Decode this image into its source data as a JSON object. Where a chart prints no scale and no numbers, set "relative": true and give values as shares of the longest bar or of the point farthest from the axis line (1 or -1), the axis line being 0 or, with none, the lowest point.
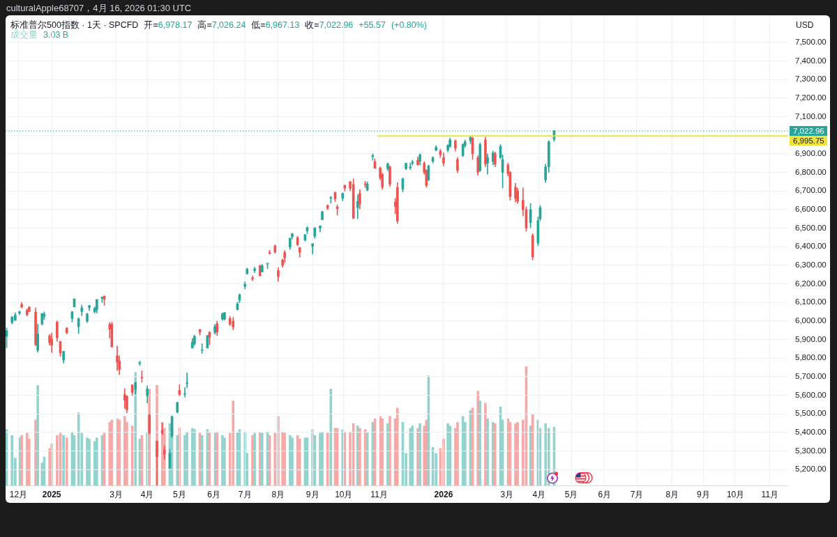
{
  "chart_data": [
    {
      "type": "candlestick",
      "title": "标准普尔500指数 · 1天 · SPCFD",
      "subtitle": "开=6,978.17 高=7,026.24 低=6,967.13 收=7,022.96 +55.57 (+0.80%)",
      "ylabel": "USD",
      "annotations": [
        "culturalApple68707，4月 16, 2026 01:30 UTC"
      ],
      "x": [
        "2024-11-21",
        "2024-11-26",
        "2024-11-29",
        "2024-12-03",
        "2024-12-05",
        "2024-12-10",
        "2024-12-12",
        "2024-12-18",
        "2024-12-20",
        "2024-12-24",
        "2024-12-26",
        "2024-12-31",
        "2025-01-02",
        "2025-01-07",
        "2025-01-10",
        "2025-01-13",
        "2025-01-16",
        "2025-01-21",
        "2025-01-23",
        "2025-01-27",
        "2025-01-30",
        "2025-02-04",
        "2025-02-06",
        "2025-02-11",
        "2025-02-13",
        "2025-02-18",
        "2025-02-20",
        "2025-02-25",
        "2025-02-27",
        "2025-03-04",
        "2025-03-06",
        "2025-03-11",
        "2025-03-13",
        "2025-03-18",
        "2025-03-21",
        "2025-03-25",
        "2025-03-27",
        "2025-04-01",
        "2025-04-03",
        "2025-04-10",
        "2025-04-15",
        "2025-04-17",
        "2025-04-22",
        "2025-04-24",
        "2025-04-29",
        "2025-05-01",
        "2025-05-06",
        "2025-05-08",
        "2025-05-13",
        "2025-05-15",
        "2025-05-20",
        "2025-05-22",
        "2025-05-27",
        "2025-05-29",
        "2025-06-03",
        "2025-06-05",
        "2025-06-10",
        "2025-06-12",
        "2025-06-17",
        "2025-06-20",
        "2025-06-24",
        "2025-06-26",
        "2025-07-01",
        "2025-07-03",
        "2025-07-08",
        "2025-07-10",
        "2025-07-15",
        "2025-07-17",
        "2025-07-22",
        "2025-07-24",
        "2025-07-29",
        "2025-08-01",
        "2025-08-05",
        "2025-08-07",
        "2025-08-12",
        "2025-08-14",
        "2025-08-19",
        "2025-08-21",
        "2025-08-26",
        "2025-08-28",
        "2025-09-02",
        "2025-09-04",
        "2025-09-09",
        "2025-09-11",
        "2025-09-16",
        "2025-09-19",
        "2025-09-23",
        "2025-09-25",
        "2025-09-30",
        "2025-10-02",
        "2025-10-07",
        "2025-10-10",
        "2025-10-14",
        "2025-10-16",
        "2025-10-21",
        "2025-10-23",
        "2025-10-28",
        "2025-10-30",
        "2025-11-04",
        "2025-11-06",
        "2025-11-11",
        "2025-11-13",
        "2025-11-18",
        "2025-11-20",
        "2025-11-25",
        "2025-11-28",
        "2025-12-02",
        "2025-12-04",
        "2025-12-09",
        "2025-12-11",
        "2025-12-15",
        "2025-12-17",
        "2025-12-19",
        "2025-12-23",
        "2025-12-26",
        "2025-12-30",
        "2026-01-02",
        "2026-01-06",
        "2026-01-08",
        "2026-01-13",
        "2026-01-15",
        "2026-01-20",
        "2026-01-22",
        "2026-01-27",
        "2026-01-29",
        "2026-02-03",
        "2026-02-05",
        "2026-02-10",
        "2026-02-12",
        "2026-02-17",
        "2026-02-19",
        "2026-02-24",
        "2026-02-26",
        "2026-03-03",
        "2026-03-05",
        "2026-03-10",
        "2026-03-12",
        "2026-03-17",
        "2026-03-20",
        "2026-03-24",
        "2026-03-26",
        "2026-03-31",
        "2026-04-02",
        "2026-04-07",
        "2026-04-10",
        "2026-04-15"
      ],
      "xlim": [
        "2024-11-20",
        "2026-11-19"
      ],
      "xticks": [
        {
          "value": "2024-12-02",
          "label": "12月"
        },
        {
          "value": "2025-01-02",
          "label": "2025"
        },
        {
          "value": "2025-03-03",
          "label": "3月"
        },
        {
          "value": "2025-04-01",
          "label": "4月"
        },
        {
          "value": "2025-05-01",
          "label": "5月"
        },
        {
          "value": "2025-06-02",
          "label": "6月"
        },
        {
          "value": "2025-07-01",
          "label": "7月"
        },
        {
          "value": "2025-08-01",
          "label": "8月"
        },
        {
          "value": "2025-09-02",
          "label": "9月"
        },
        {
          "value": "2025-10-01",
          "label": "10月"
        },
        {
          "value": "2025-11-03",
          "label": "11月"
        },
        {
          "value": "2026-01-02",
          "label": "2026"
        },
        {
          "value": "2026-03-02",
          "label": "3月"
        },
        {
          "value": "2026-04-01",
          "label": "4月"
        },
        {
          "value": "2026-05-01",
          "label": "5月"
        },
        {
          "value": "2026-06-01",
          "label": "6月"
        },
        {
          "value": "2026-07-01",
          "label": "7月"
        },
        {
          "value": "2026-08-03",
          "label": "8月"
        },
        {
          "value": "2026-09-01",
          "label": "9月"
        },
        {
          "value": "2026-10-01",
          "label": "10月"
        },
        {
          "value": "2026-11-02",
          "label": "11月"
        }
      ],
      "ylim": [
        5114,
        7646
      ],
      "yticks": [
        {
          "value": 5200,
          "label": "5,200.00"
        },
        {
          "value": 5300,
          "label": "5,300.00"
        },
        {
          "value": 5400,
          "label": "5,400.00"
        },
        {
          "value": 5500,
          "label": "5,500.00"
        },
        {
          "value": 5600,
          "label": "5,600.00"
        },
        {
          "value": 5700,
          "label": "5,700.00"
        },
        {
          "value": 5800,
          "label": "5,800.00"
        },
        {
          "value": 5900,
          "label": "5,900.00"
        },
        {
          "value": 6000,
          "label": "6,000.00"
        },
        {
          "value": 6100,
          "label": "6,100.00"
        },
        {
          "value": 6200,
          "label": "6,200.00"
        },
        {
          "value": 6300,
          "label": "6,300.00"
        },
        {
          "value": 6400,
          "label": "6,400.00"
        },
        {
          "value": 6500,
          "label": "6,500.00"
        },
        {
          "value": 6600,
          "label": "6,600.00"
        },
        {
          "value": 6700,
          "label": "6,700.00"
        },
        {
          "value": 6800,
          "label": "6,800.00"
        },
        {
          "value": 6900,
          "label": "6,900.00"
        },
        {
          "value": 7000,
          "label": null
        },
        {
          "value": 7100,
          "label": "7,100.00"
        },
        {
          "value": 7200,
          "label": "7,200.00"
        },
        {
          "value": 7300,
          "label": "7,300.00"
        },
        {
          "value": 7400,
          "label": "7,400.00"
        },
        {
          "value": 7500,
          "label": "7,500.00"
        }
      ],
      "grid": true,
      "ref_lines": [
        {
          "axis": "y",
          "value": 7022.96,
          "label": "7,022.96",
          "color": "#26a69a",
          "line_style": "dotted"
        }
      ],
      "series": [
        {
          "type": "candlestick",
          "ohlc": [
            [
              5917,
              5962,
              5856,
              5948
            ],
            [
              5992,
              6025,
              5983,
              6021
            ],
            [
              6003,
              6044,
              6003,
              6032
            ],
            [
              6042,
              6053,
              6033,
              6049
            ],
            [
              6089,
              6099,
              6070,
              6075
            ],
            [
              6057,
              6065,
              6026,
              6034
            ],
            [
              6074,
              6079,
              6051,
              6051
            ],
            [
              6048,
              6071,
              5867,
              5872
            ],
            [
              5842,
              5982,
              5832,
              5930
            ],
            [
              5984,
              6040,
              5978,
              6040
            ],
            [
              6024,
              6049,
              6007,
              6037
            ],
            [
              5920,
              5929,
              5869,
              5882
            ],
            [
              5903,
              5935,
              5830,
              5869
            ],
            [
              5994,
              6000,
              5890,
              5909
            ],
            [
              5890,
              5890,
              5809,
              5827
            ],
            [
              5789,
              5838,
              5773,
              5836
            ],
            [
              5961,
              5965,
              5930,
              5937
            ],
            [
              6014,
              6052,
              5994,
              6049
            ],
            [
              6076,
              6119,
              6075,
              6119
            ],
            [
              5969,
              6018,
              5932,
              6012
            ],
            [
              6051,
              6086,
              6028,
              6071
            ],
            [
              5998,
              6042,
              5991,
              6037
            ],
            [
              6072,
              6084,
              6056,
              6083
            ],
            [
              6049,
              6076,
              6042,
              6068
            ],
            [
              6060,
              6116,
              6043,
              6115
            ],
            [
              6121,
              6129,
              6100,
              6129
            ],
            [
              6134,
              6134,
              6084,
              6117
            ],
            [
              5982,
              5992,
              5908,
              5955
            ],
            [
              5983,
              5994,
              5858,
              5861
            ],
            [
              5812,
              5865,
              5733,
              5778
            ],
            [
              5785,
              5812,
              5711,
              5739
            ],
            [
              5604,
              5636,
              5529,
              5573
            ],
            [
              5594,
              5598,
              5505,
              5522
            ],
            [
              5655,
              5658,
              5598,
              5615
            ],
            [
              5630,
              5670,
              5603,
              5668
            ],
            [
              5771,
              5783,
              5760,
              5776
            ],
            [
              5696,
              5732,
              5670,
              5693
            ],
            [
              5597,
              5651,
              5558,
              5633
            ],
            [
              5492,
              5500,
              5390,
              5397
            ],
            [
              5353,
              5353,
              5115,
              5268
            ],
            [
              5411,
              5450,
              5387,
              5396
            ],
            [
              5305,
              5328,
              5255,
              5283
            ],
            [
              5207,
              5309,
              5207,
              5288
            ],
            [
              5381,
              5489,
              5371,
              5485
            ],
            [
              5508,
              5563,
              5505,
              5561
            ],
            [
              5626,
              5658,
              5597,
              5604
            ],
            [
              5605,
              5641,
              5590,
              5607
            ],
            [
              5663,
              5720,
              5639,
              5664
            ],
            [
              5854,
              5906,
              5854,
              5886
            ],
            [
              5878,
              5924,
              5867,
              5917
            ],
            [
              5954,
              5954,
              5924,
              5940
            ],
            [
              5841,
              5878,
              5825,
              5842
            ],
            [
              5854,
              5922,
              5854,
              5922
            ],
            [
              5939,
              5944,
              5872,
              5912
            ],
            [
              5938,
              5981,
              5927,
              5970
            ],
            [
              5985,
              5999,
              5921,
              5939
            ],
            [
              6010,
              6043,
              6003,
              6038
            ],
            [
              6010,
              6046,
              6004,
              6045
            ],
            [
              6013,
              6024,
              5975,
              5983
            ],
            [
              5999,
              6019,
              5953,
              5967
            ],
            [
              6061,
              6101,
              6059,
              6092
            ],
            [
              6112,
              6146,
              6098,
              6141
            ],
            [
              6187,
              6211,
              6172,
              6198
            ],
            [
              6253,
              6285,
              6253,
              6279
            ],
            [
              6232,
              6242,
              6217,
              6226
            ],
            [
              6271,
              6290,
              6260,
              6280
            ],
            [
              6296,
              6302,
              6241,
              6244
            ],
            [
              6265,
              6305,
              6263,
              6297
            ],
            [
              6307,
              6310,
              6281,
              6309
            ],
            [
              6368,
              6381,
              6360,
              6363
            ],
            [
              6404,
              6410,
              6364,
              6371
            ],
            [
              6272,
              6287,
              6212,
              6238
            ],
            [
              6328,
              6334,
              6288,
              6299
            ],
            [
              6369,
              6380,
              6315,
              6340
            ],
            [
              6398,
              6446,
              6385,
              6446
            ],
            [
              6453,
              6473,
              6441,
              6469
            ],
            [
              6449,
              6456,
              6404,
              6411
            ],
            [
              6395,
              6396,
              6343,
              6370
            ],
            [
              6435,
              6466,
              6430,
              6465
            ],
            [
              6485,
              6508,
              6469,
              6502
            ],
            [
              6401,
              6416,
              6360,
              6416
            ],
            [
              6456,
              6502,
              6445,
              6502
            ],
            [
              6500,
              6513,
              6480,
              6512
            ],
            [
              6545,
              6592,
              6545,
              6588
            ],
            [
              6622,
              6626,
              6599,
              6607
            ],
            [
              6661,
              6671,
              6634,
              6664
            ],
            [
              6692,
              6695,
              6643,
              6657
            ],
            [
              6614,
              6626,
              6570,
              6605
            ],
            [
              6661,
              6689,
              6647,
              6688
            ],
            [
              6731,
              6731,
              6700,
              6715
            ],
            [
              6750,
              6751,
              6700,
              6714
            ],
            [
              6735,
              6765,
              6550,
              6553
            ],
            [
              6610,
              6680,
              6550,
              6644
            ],
            [
              6687,
              6708,
              6603,
              6630
            ],
            [
              6736,
              6752,
              6718,
              6735
            ],
            [
              6705,
              6749,
              6700,
              6738
            ],
            [
              6886,
              6900,
              6865,
              6891
            ],
            [
              6858,
              6873,
              6822,
              6822
            ],
            [
              6824,
              6830,
              6760,
              6771
            ],
            [
              6790,
              6795,
              6708,
              6720
            ],
            [
              6820,
              6850,
              6810,
              6846
            ],
            [
              6830,
              6835,
              6724,
              6737
            ],
            [
              6640,
              6660,
              6578,
              6617
            ],
            [
              6720,
              6745,
              6525,
              6538
            ],
            [
              6710,
              6770,
              6695,
              6766
            ],
            [
              6820,
              6850,
              6815,
              6849
            ],
            [
              6825,
              6850,
              6815,
              6830
            ],
            [
              6850,
              6866,
              6838,
              6857
            ],
            [
              6865,
              6882,
              6838,
              6842
            ],
            [
              6860,
              6900,
              6840,
              6895
            ],
            [
              6850,
              6858,
              6790,
              6800
            ],
            [
              6810,
              6815,
              6720,
              6730
            ],
            [
              6760,
              6840,
              6755,
              6835
            ],
            [
              6860,
              6885,
              6850,
              6880
            ],
            [
              6920,
              6945,
              6915,
              6935
            ],
            [
              6915,
              6925,
              6880,
              6895
            ],
            [
              6880,
              6905,
              6835,
              6850
            ],
            [
              6920,
              6950,
              6910,
              6945
            ],
            [
              6940,
              6985,
              6935,
              6975
            ],
            [
              6970,
              6975,
              6915,
              6930
            ],
            [
              6870,
              6880,
              6798,
              6810
            ],
            [
              6890,
              6955,
              6885,
              6950
            ],
            [
              6945,
              6975,
              6935,
              6965
            ],
            [
              6970,
              6996,
              6955,
              6990
            ],
            [
              6985,
              6990,
              6870,
              6900
            ],
            [
              6880,
              6890,
              6785,
              6800
            ],
            [
              6810,
              6960,
              6805,
              6950
            ],
            [
              6975,
              6990,
              6830,
              6845
            ],
            [
              6850,
              6900,
              6790,
              6880
            ],
            [
              6860,
              6915,
              6840,
              6905
            ],
            [
              6900,
              6910,
              6830,
              6845
            ],
            [
              6880,
              6950,
              6875,
              6940
            ],
            [
              6800,
              6895,
              6716,
              6870
            ],
            [
              6840,
              6850,
              6780,
              6795
            ],
            [
              6800,
              6805,
              6650,
              6670
            ],
            [
              6720,
              6742,
              6640,
              6660
            ],
            [
              6700,
              6715,
              6633,
              6645
            ],
            [
              6650,
              6716,
              6566,
              6600
            ],
            [
              6600,
              6615,
              6483,
              6500
            ],
            [
              6530,
              6633,
              6502,
              6600
            ],
            [
              6460,
              6470,
              6329,
              6345
            ],
            [
              6420,
              6560,
              6405,
              6540
            ],
            [
              6550,
              6622,
              6540,
              6610
            ],
            [
              6760,
              6845,
              6746,
              6830
            ],
            [
              6830,
              6972,
              6800,
              6965
            ],
            [
              6978.17,
              7026.24,
              6967.13,
              7022.96
            ]
          ],
          "colors": [
            "#26a69a",
            "#26a69a",
            "#26a69a",
            "#26a69a",
            "#ef5350",
            "#ef5350",
            "#ef5350",
            "#ef5350",
            "#26a69a",
            "#26a69a",
            "#26a69a",
            "#ef5350",
            "#ef5350",
            "#ef5350",
            "#ef5350",
            "#26a69a",
            "#ef5350",
            "#26a69a",
            "#26a69a",
            "#26a69a",
            "#26a69a",
            "#26a69a",
            "#26a69a",
            "#26a69a",
            "#26a69a",
            "#26a69a",
            "#ef5350",
            "#ef5350",
            "#ef5350",
            "#ef5350",
            "#ef5350",
            "#ef5350",
            "#ef5350",
            "#ef5350",
            "#26a69a",
            "#26a69a",
            "#ef5350",
            "#26a69a",
            "#ef5350",
            "#ef5350",
            "#ef5350",
            "#ef5350",
            "#26a69a",
            "#26a69a",
            "#26a69a",
            "#ef5350",
            "#26a69a",
            "#26a69a",
            "#26a69a",
            "#26a69a",
            "#ef5350",
            "#26a69a",
            "#26a69a",
            "#ef5350",
            "#26a69a",
            "#ef5350",
            "#26a69a",
            "#26a69a",
            "#ef5350",
            "#ef5350",
            "#26a69a",
            "#26a69a",
            "#26a69a",
            "#26a69a",
            "#ef5350",
            "#26a69a",
            "#ef5350",
            "#26a69a",
            "#26a69a",
            "#ef5350",
            "#ef5350",
            "#ef5350",
            "#ef5350",
            "#ef5350",
            "#26a69a",
            "#26a69a",
            "#ef5350",
            "#ef5350",
            "#26a69a",
            "#26a69a",
            "#26a69a",
            "#26a69a",
            "#26a69a",
            "#26a69a",
            "#ef5350",
            "#26a69a",
            "#ef5350",
            "#ef5350",
            "#26a69a",
            "#ef5350",
            "#ef5350",
            "#ef5350",
            "#26a69a",
            "#ef5350",
            "#ef5350",
            "#26a69a",
            "#26a69a",
            "#ef5350",
            "#ef5350",
            "#ef5350",
            "#26a69a",
            "#ef5350",
            "#ef5350",
            "#ef5350",
            "#26a69a",
            "#26a69a",
            "#26a69a",
            "#26a69a",
            "#ef5350",
            "#26a69a",
            "#ef5350",
            "#ef5350",
            "#26a69a",
            "#26a69a",
            "#26a69a",
            "#ef5350",
            "#ef5350",
            "#26a69a",
            "#26a69a",
            "#ef5350",
            "#ef5350",
            "#26a69a",
            "#26a69a",
            "#26a69a",
            "#ef5350",
            "#ef5350",
            "#26a69a",
            "#ef5350",
            "#26a69a",
            "#26a69a",
            "#ef5350",
            "#26a69a",
            "#26a69a",
            "#ef5350",
            "#ef5350",
            "#ef5350",
            "#ef5350",
            "#ef5350",
            "#ef5350",
            "#26a69a",
            "#ef5350",
            "#26a69a",
            "#26a69a",
            "#26a69a",
            "#26a69a",
            "#26a69a"
          ]
        },
        {
          "type": "line",
          "color": "#f2e33b",
          "x": [
            "2025-11-02",
            "2026-11-19"
          ],
          "values": [
            6995.75,
            6995.75
          ],
          "value_labels": [
            null,
            "6,995.75"
          ]
        }
      ]
    },
    {
      "type": "bar",
      "relative": true,
      "tick_labels": false,
      "legend": "top left",
      "annotations": [
        "3.03 B"
      ],
      "x": [
        "2024-11-21",
        "2024-11-26",
        "2024-11-29",
        "2024-12-03",
        "2024-12-05",
        "2024-12-10",
        "2024-12-12",
        "2024-12-18",
        "2024-12-20",
        "2024-12-24",
        "2024-12-26",
        "2024-12-31",
        "2025-01-02",
        "2025-01-07",
        "2025-01-10",
        "2025-01-13",
        "2025-01-16",
        "2025-01-21",
        "2025-01-23",
        "2025-01-27",
        "2025-01-30",
        "2025-02-04",
        "2025-02-06",
        "2025-02-11",
        "2025-02-13",
        "2025-02-18",
        "2025-02-20",
        "2025-02-25",
        "2025-02-27",
        "2025-03-04",
        "2025-03-06",
        "2025-03-11",
        "2025-03-13",
        "2025-03-18",
        "2025-03-21",
        "2025-03-25",
        "2025-03-27",
        "2025-04-01",
        "2025-04-03",
        "2025-04-10",
        "2025-04-15",
        "2025-04-17",
        "2025-04-22",
        "2025-04-24",
        "2025-04-29",
        "2025-05-01",
        "2025-05-06",
        "2025-05-08",
        "2025-05-13",
        "2025-05-15",
        "2025-05-20",
        "2025-05-22",
        "2025-05-27",
        "2025-05-29",
        "2025-06-03",
        "2025-06-05",
        "2025-06-10",
        "2025-06-12",
        "2025-06-17",
        "2025-06-20",
        "2025-06-24",
        "2025-06-26",
        "2025-07-01",
        "2025-07-03",
        "2025-07-08",
        "2025-07-10",
        "2025-07-15",
        "2025-07-17",
        "2025-07-22",
        "2025-07-24",
        "2025-07-29",
        "2025-08-01",
        "2025-08-05",
        "2025-08-07",
        "2025-08-12",
        "2025-08-14",
        "2025-08-19",
        "2025-08-21",
        "2025-08-26",
        "2025-08-28",
        "2025-09-02",
        "2025-09-04",
        "2025-09-09",
        "2025-09-11",
        "2025-09-16",
        "2025-09-19",
        "2025-09-23",
        "2025-09-25",
        "2025-09-30",
        "2025-10-02",
        "2025-10-07",
        "2025-10-10",
        "2025-10-14",
        "2025-10-16",
        "2025-10-21",
        "2025-10-23",
        "2025-10-28",
        "2025-10-30",
        "2025-11-04",
        "2025-11-06",
        "2025-11-11",
        "2025-11-13",
        "2025-11-18",
        "2025-11-20",
        "2025-11-25",
        "2025-11-28",
        "2025-12-02",
        "2025-12-04",
        "2025-12-09",
        "2025-12-11",
        "2025-12-15",
        "2025-12-17",
        "2025-12-19",
        "2025-12-23",
        "2025-12-26",
        "2025-12-30",
        "2026-01-02",
        "2026-01-06",
        "2026-01-08",
        "2026-01-13",
        "2026-01-15",
        "2026-01-20",
        "2026-01-22",
        "2026-01-27",
        "2026-01-29",
        "2026-02-03",
        "2026-02-05",
        "2026-02-10",
        "2026-02-12",
        "2026-02-17",
        "2026-02-19",
        "2026-02-24",
        "2026-02-26",
        "2026-03-03",
        "2026-03-05",
        "2026-03-10",
        "2026-03-12",
        "2026-03-17",
        "2026-03-20",
        "2026-03-24",
        "2026-03-26",
        "2026-03-31",
        "2026-04-02",
        "2026-04-07",
        "2026-04-10",
        "2026-04-15"
      ],
      "xlim": [
        "2024-11-20",
        "2026-11-19"
      ],
      "series": [
        {
          "name": "成交量",
          "values": [
            0.47,
            0.42,
            0.23,
            0.4,
            0.42,
            0.44,
            0.39,
            0.55,
            0.84,
            0.19,
            0.24,
            0.31,
            0.35,
            0.42,
            0.44,
            0.42,
            0.4,
            0.45,
            0.42,
            0.61,
            0.44,
            0.4,
            0.39,
            0.37,
            0.4,
            0.42,
            0.44,
            0.53,
            0.55,
            0.56,
            0.55,
            0.58,
            0.53,
            0.5,
            0.95,
            0.39,
            0.42,
            0.45,
            0.81,
            0.84,
            0.53,
            0.48,
            0.52,
            0.48,
            0.42,
            0.48,
            0.42,
            0.45,
            0.48,
            0.47,
            0.44,
            0.42,
            0.47,
            0.44,
            0.44,
            0.45,
            0.42,
            0.4,
            0.44,
            0.71,
            0.45,
            0.47,
            0.45,
            0.27,
            0.42,
            0.44,
            0.45,
            0.44,
            0.45,
            0.42,
            0.44,
            0.58,
            0.45,
            0.44,
            0.42,
            0.4,
            0.42,
            0.39,
            0.4,
            0.4,
            0.47,
            0.42,
            0.44,
            0.45,
            0.44,
            0.81,
            0.48,
            0.48,
            0.47,
            0.45,
            0.45,
            0.52,
            0.5,
            0.48,
            0.47,
            0.45,
            0.53,
            0.56,
            0.58,
            0.56,
            0.52,
            0.58,
            0.56,
            0.65,
            0.53,
            0.27,
            0.48,
            0.5,
            0.48,
            0.52,
            0.5,
            0.55,
            0.92,
            0.32,
            0.27,
            0.31,
            0.39,
            0.52,
            0.5,
            0.48,
            0.53,
            0.58,
            0.53,
            0.63,
            0.65,
            0.79,
            0.71,
            0.69,
            0.56,
            0.53,
            0.52,
            0.66,
            0.55,
            0.56,
            0.53,
            0.52,
            0.53,
            0.55,
            1,
            0.5,
            0.6,
            0.55,
            0.48,
            0.52,
            0.48,
            0.49
          ],
          "colors": [
            "#93d3cd",
            "#93d3cd",
            "#93d3cd",
            "#93d3cd",
            "#f7a9a7",
            "#f7a9a7",
            "#f7a9a7",
            "#f7a9a7",
            "#93d3cd",
            "#93d3cd",
            "#93d3cd",
            "#f7a9a7",
            "#f7a9a7",
            "#f7a9a7",
            "#f7a9a7",
            "#93d3cd",
            "#f7a9a7",
            "#93d3cd",
            "#93d3cd",
            "#93d3cd",
            "#93d3cd",
            "#93d3cd",
            "#93d3cd",
            "#93d3cd",
            "#93d3cd",
            "#93d3cd",
            "#f7a9a7",
            "#f7a9a7",
            "#f7a9a7",
            "#f7a9a7",
            "#f7a9a7",
            "#f7a9a7",
            "#f7a9a7",
            "#f7a9a7",
            "#93d3cd",
            "#93d3cd",
            "#f7a9a7",
            "#93d3cd",
            "#f7a9a7",
            "#f7a9a7",
            "#f7a9a7",
            "#f7a9a7",
            "#93d3cd",
            "#93d3cd",
            "#93d3cd",
            "#f7a9a7",
            "#93d3cd",
            "#93d3cd",
            "#93d3cd",
            "#93d3cd",
            "#f7a9a7",
            "#93d3cd",
            "#93d3cd",
            "#f7a9a7",
            "#93d3cd",
            "#f7a9a7",
            "#93d3cd",
            "#93d3cd",
            "#f7a9a7",
            "#f7a9a7",
            "#93d3cd",
            "#93d3cd",
            "#93d3cd",
            "#93d3cd",
            "#f7a9a7",
            "#93d3cd",
            "#f7a9a7",
            "#93d3cd",
            "#93d3cd",
            "#f7a9a7",
            "#f7a9a7",
            "#f7a9a7",
            "#f7a9a7",
            "#f7a9a7",
            "#93d3cd",
            "#93d3cd",
            "#f7a9a7",
            "#f7a9a7",
            "#93d3cd",
            "#93d3cd",
            "#93d3cd",
            "#93d3cd",
            "#93d3cd",
            "#93d3cd",
            "#f7a9a7",
            "#93d3cd",
            "#f7a9a7",
            "#f7a9a7",
            "#93d3cd",
            "#f7a9a7",
            "#f7a9a7",
            "#f7a9a7",
            "#93d3cd",
            "#f7a9a7",
            "#f7a9a7",
            "#93d3cd",
            "#93d3cd",
            "#f7a9a7",
            "#f7a9a7",
            "#f7a9a7",
            "#93d3cd",
            "#f7a9a7",
            "#f7a9a7",
            "#f7a9a7",
            "#93d3cd",
            "#93d3cd",
            "#93d3cd",
            "#93d3cd",
            "#f7a9a7",
            "#93d3cd",
            "#f7a9a7",
            "#f7a9a7",
            "#93d3cd",
            "#93d3cd",
            "#93d3cd",
            "#f7a9a7",
            "#f7a9a7",
            "#93d3cd",
            "#93d3cd",
            "#f7a9a7",
            "#f7a9a7",
            "#93d3cd",
            "#93d3cd",
            "#93d3cd",
            "#f7a9a7",
            "#f7a9a7",
            "#93d3cd",
            "#f7a9a7",
            "#93d3cd",
            "#93d3cd",
            "#f7a9a7",
            "#93d3cd",
            "#93d3cd",
            "#f7a9a7",
            "#f7a9a7",
            "#f7a9a7",
            "#f7a9a7",
            "#f7a9a7",
            "#f7a9a7",
            "#93d3cd",
            "#f7a9a7",
            "#93d3cd",
            "#93d3cd",
            "#93d3cd",
            "#93d3cd",
            "#93d3cd"
          ]
        }
      ]
    }
  ]
}
